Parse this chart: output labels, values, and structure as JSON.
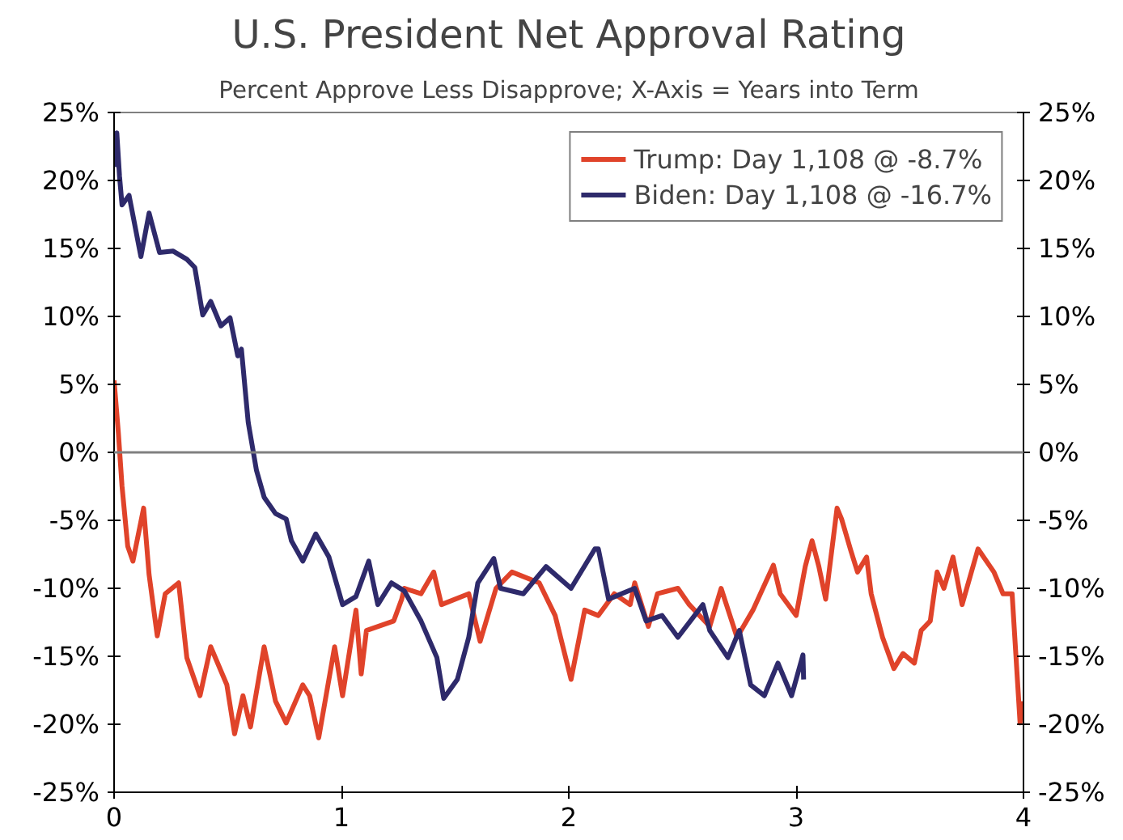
{
  "chart_data": {
    "type": "line",
    "title": "U.S. President Net Approval Rating",
    "subtitle": "Percent Approve Less Disapprove; X-Axis = Years into Term",
    "xlim": [
      0,
      4
    ],
    "xticks": [
      0,
      1,
      2,
      3,
      4
    ],
    "ylim": [
      -25,
      25
    ],
    "yticks": [
      {
        "value": -25,
        "label": "-25%"
      },
      {
        "value": -20,
        "label": "-20%"
      },
      {
        "value": -15,
        "label": "-15%"
      },
      {
        "value": -10,
        "label": "-10%"
      },
      {
        "value": -5,
        "label": "-5%"
      },
      {
        "value": 0,
        "label": "0%"
      },
      {
        "value": 5,
        "label": "5%"
      },
      {
        "value": 10,
        "label": "10%"
      },
      {
        "value": 15,
        "label": "15%"
      },
      {
        "value": 20,
        "label": "20%"
      },
      {
        "value": 25,
        "label": "25%"
      }
    ],
    "y2lim": [
      -25,
      25
    ],
    "y2ticks": [
      {
        "value": -25,
        "label": "-25%"
      },
      {
        "value": -20,
        "label": "-20%"
      },
      {
        "value": -15,
        "label": "-15%"
      },
      {
        "value": -10,
        "label": "-10%"
      },
      {
        "value": -5,
        "label": "-5%"
      },
      {
        "value": 0,
        "label": "0%"
      },
      {
        "value": 5,
        "label": "5%"
      },
      {
        "value": 10,
        "label": "10%"
      },
      {
        "value": 15,
        "label": "15%"
      },
      {
        "value": 20,
        "label": "20%"
      },
      {
        "value": 25,
        "label": "25%"
      }
    ],
    "ref_lines": [
      {
        "axis": "y",
        "value": 0,
        "color": "#808080"
      }
    ],
    "grid": false,
    "legend": "top right",
    "series": [
      {
        "name": "Trump: Day 1,108 @ -8.7%",
        "color": "#e0432a",
        "x": [
          0,
          0.019,
          0.035,
          0.06,
          0.083,
          0.13,
          0.154,
          0.19,
          0.225,
          0.284,
          0.32,
          0.378,
          0.425,
          0.496,
          0.53,
          0.567,
          0.6,
          0.66,
          0.71,
          0.757,
          0.83,
          0.86,
          0.9,
          0.97,
          1.005,
          1.064,
          1.087,
          1.11,
          1.23,
          1.265,
          1.277,
          1.35,
          1.406,
          1.44,
          1.56,
          1.61,
          1.68,
          1.75,
          1.87,
          1.94,
          2.01,
          2.07,
          2.13,
          2.2,
          2.27,
          2.29,
          2.35,
          2.39,
          2.48,
          2.53,
          2.62,
          2.67,
          2.74,
          2.81,
          2.9,
          2.93,
          3.0,
          3.04,
          3.07,
          3.1,
          3.13,
          3.18,
          3.2,
          3.24,
          3.27,
          3.31,
          3.33,
          3.38,
          3.43,
          3.47,
          3.52,
          3.55,
          3.59,
          3.62,
          3.65,
          3.69,
          3.73,
          3.8,
          3.87,
          3.91,
          3.95,
          3.985,
          3.99
        ],
        "values": [
          5.3,
          1.4,
          -2.5,
          -6.9,
          -8.0,
          -4.1,
          -9.0,
          -13.5,
          -10.4,
          -9.6,
          -15.1,
          -17.9,
          -14.3,
          -17.1,
          -20.7,
          -17.9,
          -20.2,
          -14.3,
          -18.3,
          -19.9,
          -17.1,
          -17.9,
          -21.0,
          -14.3,
          -17.9,
          -11.6,
          -16.3,
          -13.1,
          -12.4,
          -10.8,
          -10.0,
          -10.4,
          -8.8,
          -11.2,
          -10.4,
          -13.9,
          -10.0,
          -8.8,
          -9.6,
          -12.0,
          -16.7,
          -11.6,
          -12.0,
          -10.4,
          -11.2,
          -9.6,
          -12.8,
          -10.4,
          -10.0,
          -11.2,
          -12.8,
          -10.0,
          -13.6,
          -11.6,
          -8.3,
          -10.4,
          -12.0,
          -8.4,
          -6.5,
          -8.4,
          -10.8,
          -4.1,
          -4.9,
          -7.2,
          -8.8,
          -7.7,
          -10.4,
          -13.6,
          -15.9,
          -14.8,
          -15.5,
          -13.1,
          -12.4,
          -8.8,
          -10.0,
          -7.7,
          -11.2,
          -7.1,
          -8.8,
          -10.4,
          -10.4,
          -19.9,
          -18.3
        ]
      },
      {
        "name": "Biden: Day 1,108 @ -16.7%",
        "color": "#2e2a6b",
        "x": [
          0.0,
          0.012,
          0.024,
          0.035,
          0.066,
          0.118,
          0.154,
          0.2,
          0.26,
          0.32,
          0.355,
          0.39,
          0.425,
          0.47,
          0.51,
          0.544,
          0.56,
          0.59,
          0.626,
          0.66,
          0.71,
          0.757,
          0.78,
          0.83,
          0.887,
          0.945,
          1.005,
          1.064,
          1.12,
          1.16,
          1.22,
          1.277,
          1.35,
          1.42,
          1.45,
          1.51,
          1.56,
          1.6,
          1.67,
          1.7,
          1.8,
          1.9,
          2.01,
          2.115,
          2.13,
          2.175,
          2.29,
          2.34,
          2.41,
          2.48,
          2.59,
          2.62,
          2.7,
          2.75,
          2.8,
          2.86,
          2.92,
          2.98,
          3.03,
          3.033
        ],
        "values": [
          21.0,
          23.5,
          20.3,
          18.2,
          18.9,
          14.4,
          17.6,
          14.7,
          14.8,
          14.2,
          13.6,
          10.1,
          11.1,
          9.3,
          9.9,
          7.1,
          7.6,
          2.2,
          -1.3,
          -3.3,
          -4.5,
          -4.9,
          -6.5,
          -8.0,
          -6.0,
          -7.7,
          -11.2,
          -10.6,
          -8.0,
          -11.2,
          -9.6,
          -10.2,
          -12.4,
          -15.1,
          -18.1,
          -16.7,
          -13.6,
          -9.6,
          -7.8,
          -10.0,
          -10.4,
          -8.4,
          -10.0,
          -7.1,
          -7.1,
          -10.8,
          -10.0,
          -12.4,
          -12.0,
          -13.6,
          -11.2,
          -13.1,
          -15.1,
          -13.1,
          -17.1,
          -17.9,
          -15.5,
          -17.9,
          -14.9,
          -16.7
        ]
      }
    ]
  }
}
